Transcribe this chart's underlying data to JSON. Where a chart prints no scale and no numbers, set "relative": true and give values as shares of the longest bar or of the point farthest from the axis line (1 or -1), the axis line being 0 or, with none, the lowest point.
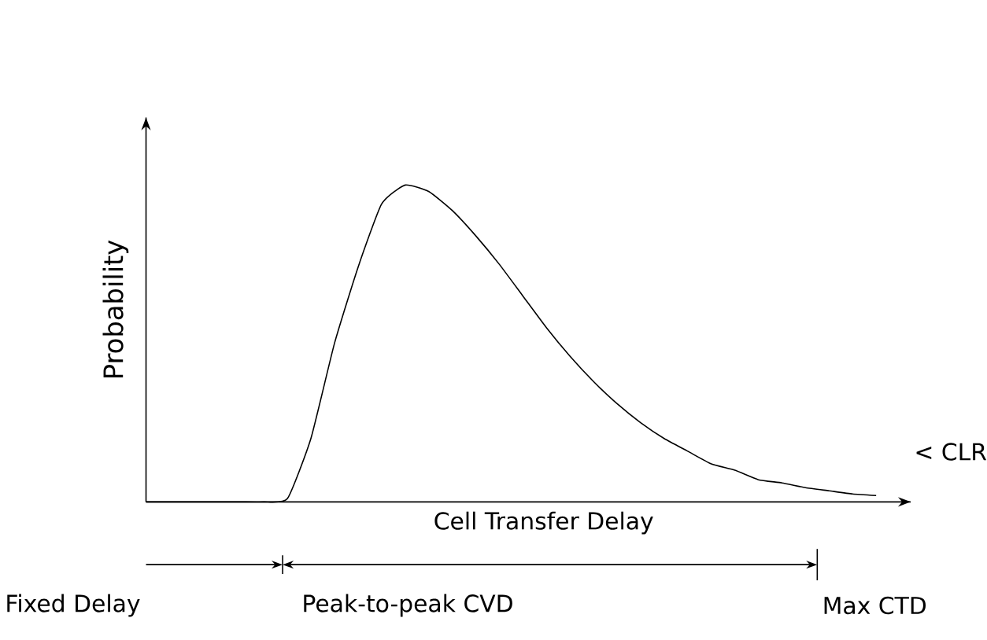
{
  "chart_data": {
    "type": "line",
    "relative": true,
    "xlabel": "Cell Transfer Delay",
    "ylabel": "Probability",
    "color": "#000000",
    "categories": [
      null,
      null,
      null,
      null,
      null,
      null,
      null,
      null,
      null,
      null,
      null,
      null,
      null,
      null,
      null,
      null,
      null,
      null,
      null,
      null,
      null,
      null,
      null,
      null,
      null,
      null,
      null,
      null,
      null,
      null,
      null,
      null
    ],
    "values": [
      0,
      0,
      0,
      0,
      0,
      0,
      0.01,
      0.2,
      0.5,
      0.74,
      0.94,
      1,
      0.98,
      0.92,
      0.84,
      0.75,
      0.65,
      0.55,
      0.46,
      0.38,
      0.31,
      0.25,
      0.2,
      0.16,
      0.12,
      0.1,
      0.07,
      0.06,
      0.045,
      0.035,
      0.025,
      0.02
    ],
    "annotations": [
      "< CLR",
      "Fixed Delay",
      "Peak-to-peak CVD",
      "Max CTD"
    ]
  }
}
